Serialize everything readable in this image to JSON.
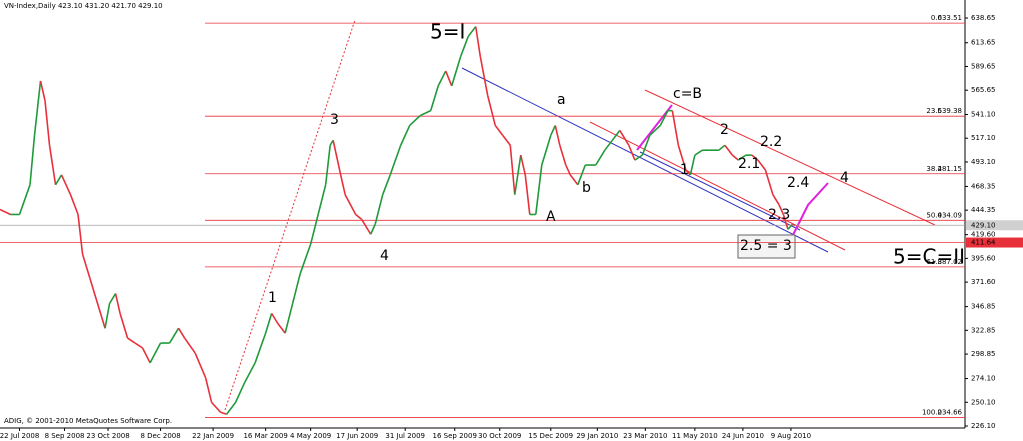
{
  "chart_data": {
    "type": "line",
    "title": "VN-Index,Daily 423.10 431.20 421.70 429.10",
    "copyright": "ADIG, © 2001-2010 MetaQuotes Software Corp.",
    "up_color": "#1f9a3a",
    "down_color": "#e8303a",
    "xlim": [
      0,
      643
    ],
    "xticks": [
      {
        "value": 13,
        "label": "22 Jul 2008"
      },
      {
        "value": 43,
        "label": "8 Sep 2008"
      },
      {
        "value": 72,
        "label": "23 Oct 2008"
      },
      {
        "value": 107,
        "label": "8 Dec 2008"
      },
      {
        "value": 142,
        "label": "22 Jan 2009"
      },
      {
        "value": 177,
        "label": "16 Mar 2009"
      },
      {
        "value": 207,
        "label": "4 May 2009"
      },
      {
        "value": 238,
        "label": "17 Jun 2009"
      },
      {
        "value": 270,
        "label": "31 Jul 2009"
      },
      {
        "value": 303,
        "label": "16 Sep 2009"
      },
      {
        "value": 333,
        "label": "30 Oct 2009"
      },
      {
        "value": 367,
        "label": "15 Dec 2009"
      },
      {
        "value": 398,
        "label": "29 Jan 2010"
      },
      {
        "value": 430,
        "label": "23 Mar 2010"
      },
      {
        "value": 463,
        "label": "11 May 2010"
      },
      {
        "value": 495,
        "label": "24 Jun 2010"
      },
      {
        "value": 527,
        "label": "9 Aug 2010"
      }
    ],
    "ylim": [
      224.1,
      651.8
    ],
    "yticks": [
      638.65,
      613.65,
      589.65,
      565.65,
      {
        "value": 541.1,
        "label": "541.10"
      },
      {
        "value": 517.1,
        "label": "517.10"
      },
      {
        "value": 493.1,
        "label": "493.10"
      },
      468.35,
      444.35,
      {
        "value": 419.6,
        "label": "419.60"
      },
      {
        "value": 395.6,
        "label": "395.60"
      },
      {
        "value": 371.6,
        "label": "371.60"
      },
      346.85,
      322.85,
      298.85,
      {
        "value": 274.1,
        "label": "274.10"
      },
      {
        "value": 250.1,
        "label": "250.10"
      },
      {
        "value": 226.1,
        "label": "226.10"
      }
    ],
    "x": [
      0,
      7,
      13,
      20,
      23,
      27,
      30,
      33,
      37,
      41,
      47,
      52,
      55,
      60,
      67,
      70,
      73,
      77,
      80,
      85,
      90,
      95,
      100,
      107,
      113,
      119,
      123,
      130,
      137,
      141,
      147,
      151,
      157,
      163,
      170,
      177,
      181,
      185,
      190,
      195,
      200,
      207,
      212,
      217,
      220,
      222,
      227,
      230,
      237,
      241,
      247,
      250,
      255,
      260,
      267,
      273,
      280,
      287,
      292,
      297,
      301,
      307,
      312,
      317,
      320,
      325,
      330,
      335,
      340,
      343,
      347,
      350,
      353,
      357,
      361,
      367,
      370,
      373,
      377,
      380,
      385,
      390,
      397,
      403,
      408,
      413,
      419,
      423,
      428,
      433,
      440,
      445,
      448,
      452,
      457,
      460,
      463,
      468,
      473,
      479,
      483,
      488,
      492,
      497,
      501,
      505,
      510,
      515,
      519,
      522,
      525,
      528,
      530
    ],
    "values": [
      445,
      440,
      440,
      470,
      520,
      575,
      555,
      510,
      470,
      480,
      460,
      440,
      400,
      375,
      340,
      325,
      350,
      360,
      340,
      315,
      310,
      305,
      290,
      310,
      310,
      325,
      315,
      300,
      275,
      250,
      240,
      238,
      250,
      270,
      290,
      320,
      340,
      330,
      320,
      350,
      380,
      410,
      440,
      470,
      510,
      515,
      480,
      460,
      440,
      435,
      420,
      430,
      460,
      480,
      510,
      530,
      540,
      545,
      570,
      585,
      570,
      600,
      620,
      630,
      600,
      560,
      530,
      520,
      510,
      460,
      500,
      480,
      440,
      440,
      490,
      520,
      530,
      510,
      490,
      480,
      470,
      490,
      490,
      505,
      515,
      525,
      510,
      495,
      500,
      520,
      530,
      545,
      545,
      510,
      485,
      480,
      500,
      505,
      505,
      505,
      510,
      500,
      495,
      500,
      500,
      495,
      485,
      460,
      450,
      440,
      425,
      430,
      429.1
    ],
    "fib_levels": [
      {
        "level": "0.0",
        "price": 633.51
      },
      {
        "level": "23.6",
        "price": 539.38
      },
      {
        "level": "38.2",
        "price": 481.15
      },
      {
        "level": "50.0",
        "price": 434.09
      },
      {
        "level": "61.8",
        "price": 387.02
      },
      {
        "level": "100.0",
        "price": 234.66
      }
    ],
    "price_tags": [
      {
        "value": 429.1,
        "label": "429.10"
      },
      {
        "value": 411.64,
        "label": "411.64"
      }
    ],
    "annotations": [
      "5=I",
      "3",
      "4",
      "1",
      "a",
      "b",
      "A",
      "c=B",
      "2",
      "2.2",
      "2.1",
      "1",
      "2.4",
      "2.3",
      "2.5 = 3",
      "4",
      "5=C=II"
    ]
  }
}
